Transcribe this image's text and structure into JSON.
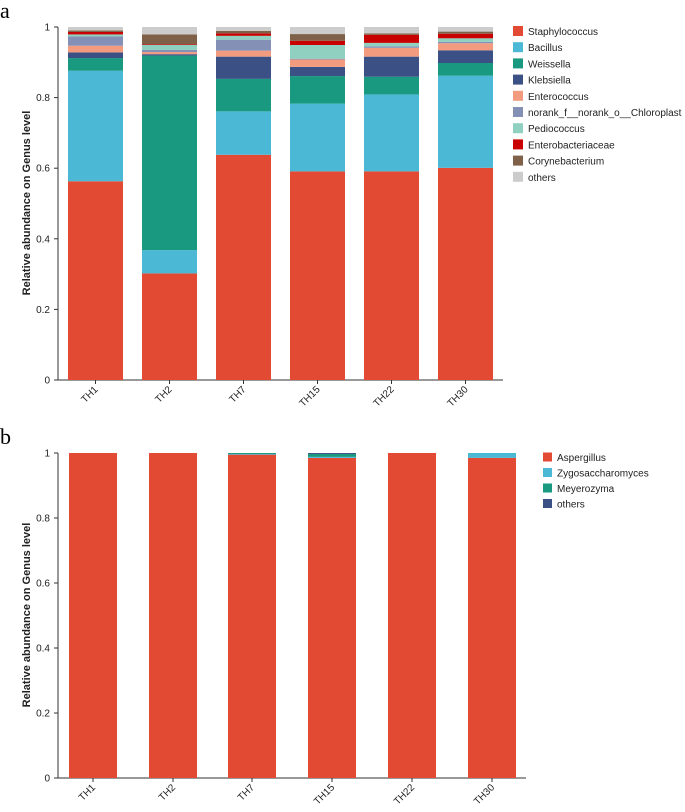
{
  "panels": [
    {
      "letter": "a",
      "chart_data": {
        "type": "bar",
        "stacked": true,
        "title": "",
        "xlabel": "",
        "ylabel": "Relative abundance on Genus level",
        "ylim": [
          0,
          1
        ],
        "yticks": [
          "0",
          "0.2",
          "0.4",
          "0.6",
          "0.8",
          "1"
        ],
        "categories": [
          "TH1",
          "TH2",
          "TH7",
          "TH15",
          "TH22",
          "TH30"
        ],
        "legend_position": "right",
        "series": [
          {
            "name": "Staphylococcus",
            "color": "#e34a33",
            "values": [
              0.563,
              0.302,
              0.638,
              0.591,
              0.591,
              0.601
            ]
          },
          {
            "name": "Bacillus",
            "color": "#4bb8d6",
            "values": [
              0.313,
              0.066,
              0.123,
              0.192,
              0.218,
              0.261
            ]
          },
          {
            "name": "Weissella",
            "color": "#199a80",
            "values": [
              0.036,
              0.551,
              0.092,
              0.078,
              0.05,
              0.036
            ]
          },
          {
            "name": "Klebsiella",
            "color": "#3b5186",
            "values": [
              0.016,
              0.004,
              0.063,
              0.026,
              0.057,
              0.036
            ]
          },
          {
            "name": "Enterococcus",
            "color": "#f29b7f",
            "values": [
              0.019,
              0.006,
              0.017,
              0.021,
              0.025,
              0.02
            ]
          },
          {
            "name": "norank_f__norank_o__Chloroplast",
            "color": "#8490b6",
            "values": [
              0.026,
              0.006,
              0.031,
              0.002,
              0.004,
              0.004
            ]
          },
          {
            "name": "Pediococcus",
            "color": "#8fd0c0",
            "values": [
              0.006,
              0.014,
              0.011,
              0.039,
              0.01,
              0.01
            ]
          },
          {
            "name": "Enterobacteriaceae",
            "color": "#c80000",
            "values": [
              0.007,
              0.002,
              0.007,
              0.012,
              0.023,
              0.013
            ]
          },
          {
            "name": "Corynebacterium",
            "color": "#7e6148",
            "values": [
              0.004,
              0.028,
              0.007,
              0.019,
              0.004,
              0.006
            ]
          },
          {
            "name": "others",
            "color": "#cccccc",
            "values": [
              0.01,
              0.021,
              0.011,
              0.02,
              0.018,
              0.013
            ]
          }
        ]
      }
    },
    {
      "letter": "b",
      "chart_data": {
        "type": "bar",
        "stacked": true,
        "title": "",
        "xlabel": "",
        "ylabel": "Relative abundance on Genus level",
        "ylim": [
          0,
          1
        ],
        "yticks": [
          "0",
          "0.2",
          "0.4",
          "0.6",
          "0.8",
          "1"
        ],
        "categories": [
          "TH1",
          "TH2",
          "TH7",
          "TH15",
          "TH22",
          "TH30"
        ],
        "legend_position": "right",
        "series": [
          {
            "name": "Aspergillus",
            "color": "#e34a33",
            "values": [
              1.0,
              1.0,
              0.995,
              0.985,
              1.0,
              0.985
            ]
          },
          {
            "name": "Zygosaccharomyces",
            "color": "#4bb8d6",
            "values": [
              0.0,
              0.0,
              0.002,
              0.003,
              0.0,
              0.015
            ]
          },
          {
            "name": "Meyerozyma",
            "color": "#199a80",
            "values": [
              0.0,
              0.0,
              0.003,
              0.009,
              0.0,
              0.0
            ]
          },
          {
            "name": "others",
            "color": "#3b5186",
            "values": [
              0.0,
              0.0,
              0.0,
              0.003,
              0.0,
              0.0
            ]
          }
        ]
      }
    }
  ]
}
